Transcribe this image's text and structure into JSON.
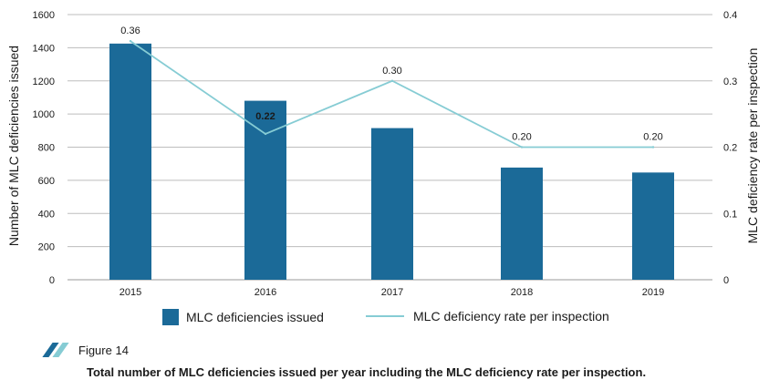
{
  "chart_data": {
    "type": "bar",
    "categories": [
      "2015",
      "2016",
      "2017",
      "2018",
      "2019"
    ],
    "series": [
      {
        "name": "MLC deficiencies issued",
        "kind": "bar",
        "axis": "left",
        "values": [
          1425,
          1080,
          915,
          677,
          647
        ],
        "color": "#1b6a98"
      },
      {
        "name": "MLC deficiency rate per inspection",
        "kind": "line",
        "axis": "right",
        "values": [
          0.36,
          0.22,
          0.3,
          0.2,
          0.2
        ],
        "color": "#86ccd4"
      }
    ],
    "data_labels": [
      "0.36",
      "0.22",
      "0.30",
      "0.20",
      "0.20"
    ],
    "ylabel": "Number of MLC deficiencies issued",
    "y2label": "MLC deficiency rate per inspection",
    "ylim": [
      0,
      1600
    ],
    "y2lim": [
      0,
      0.4
    ],
    "yticks": [
      "0",
      "200",
      "400",
      "600",
      "800",
      "1000",
      "1200",
      "1400",
      "1600"
    ],
    "y2ticks": [
      "0",
      "0.1",
      "0.2",
      "0.3",
      "0.4"
    ],
    "grid": true,
    "legend_position": "bottom"
  },
  "figure": {
    "label": "Figure 14",
    "caption": "Total number of MLC deficiencies issued per year including the MLC deficiency rate per inspection.",
    "icon": "double-slash-icon",
    "icon_colors": [
      "#1b6a98",
      "#86ccd4"
    ]
  }
}
